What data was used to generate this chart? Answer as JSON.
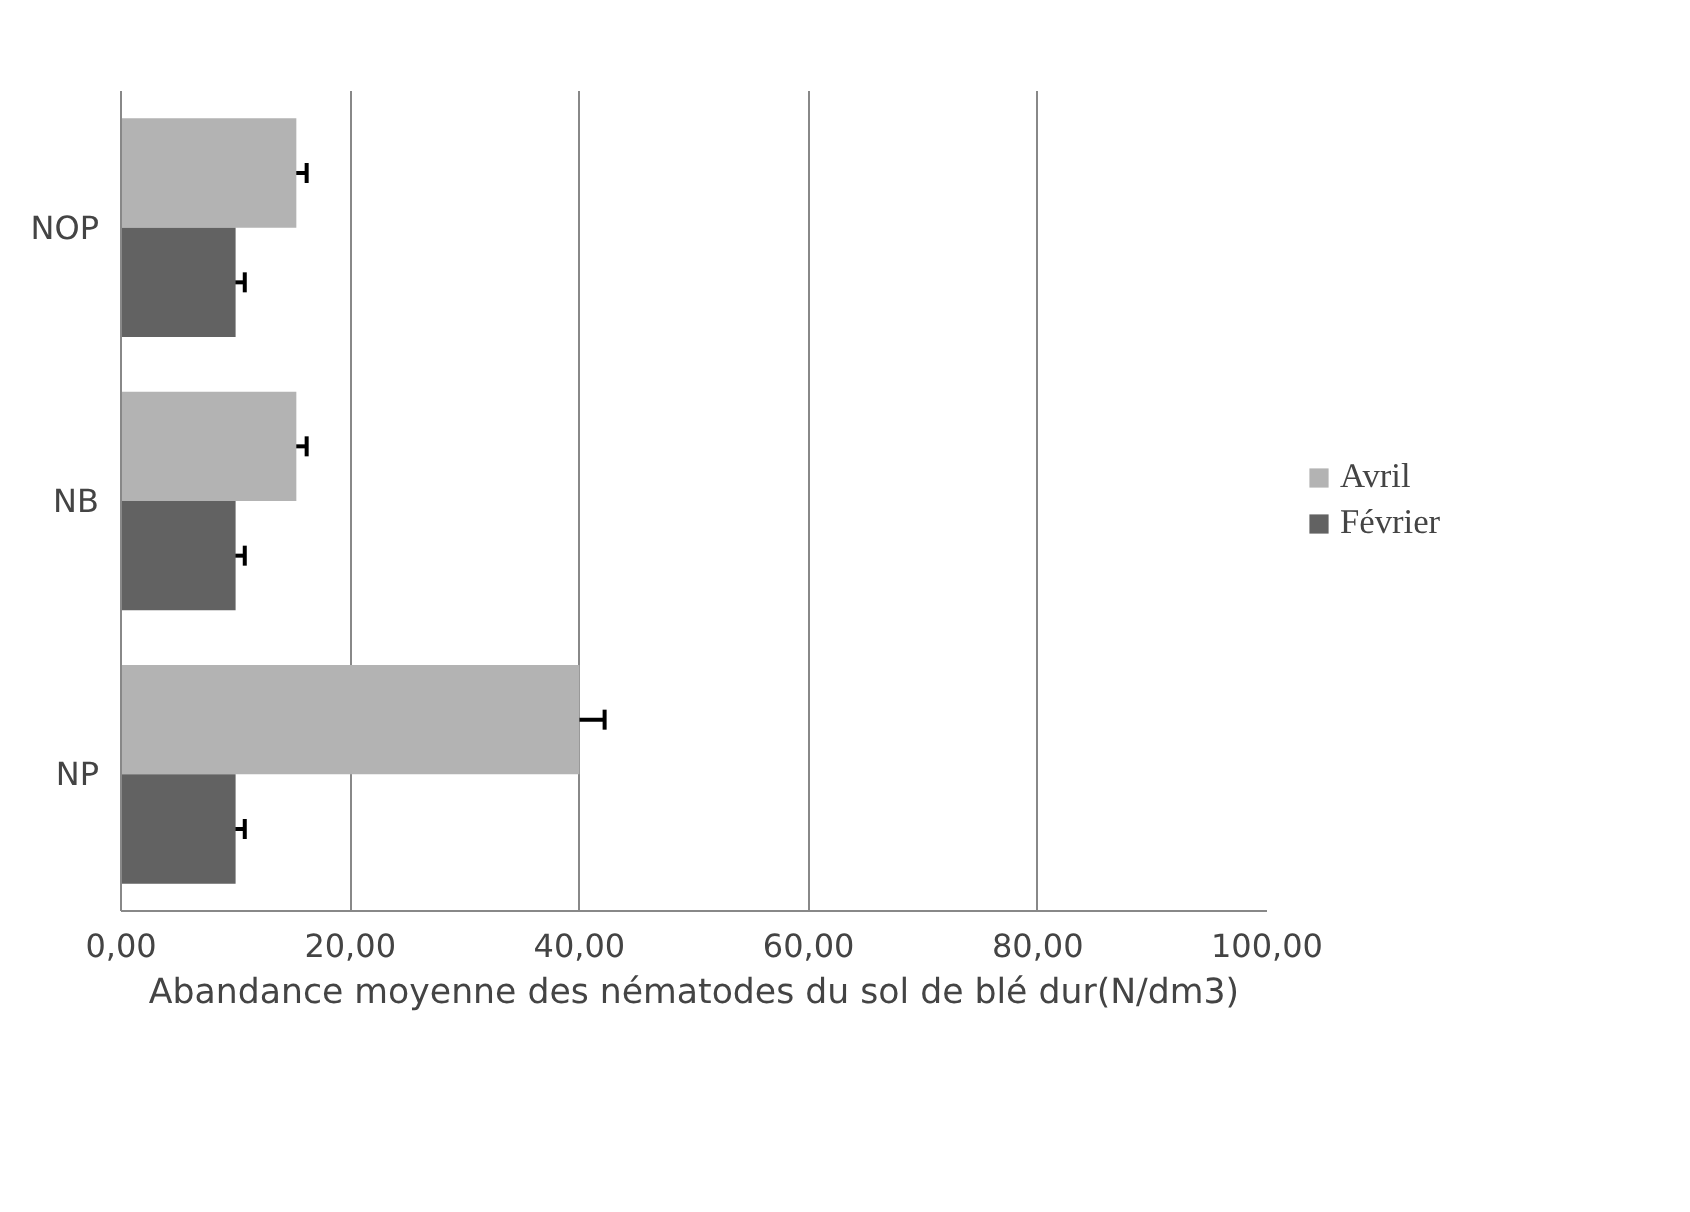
{
  "chart_data": {
    "type": "bar",
    "orientation": "horizontal",
    "categories": [
      "NOP",
      "NB",
      "NP"
    ],
    "series": [
      {
        "name": "Avril",
        "color": "#b3b3b3",
        "values": [
          15.3,
          15.3,
          40.0
        ],
        "errors": [
          0.9,
          0.9,
          2.2
        ]
      },
      {
        "name": "Février",
        "color": "#626262",
        "values": [
          10.0,
          10.0,
          10.0
        ],
        "errors": [
          0.8,
          0.8,
          0.8
        ]
      }
    ],
    "xlim": [
      0,
      100
    ],
    "xticks": [
      {
        "value": 0,
        "label": "0,00"
      },
      {
        "value": 20,
        "label": "20,00"
      },
      {
        "value": 40,
        "label": "40,00"
      },
      {
        "value": 60,
        "label": "60,00"
      },
      {
        "value": 80,
        "label": "80,00"
      },
      {
        "value": 100,
        "label": "100,00"
      }
    ],
    "xlabel": "Abandance moyenne des nématodes du sol de blé dur(N/dm3)",
    "grid": "x",
    "legend": "right"
  }
}
